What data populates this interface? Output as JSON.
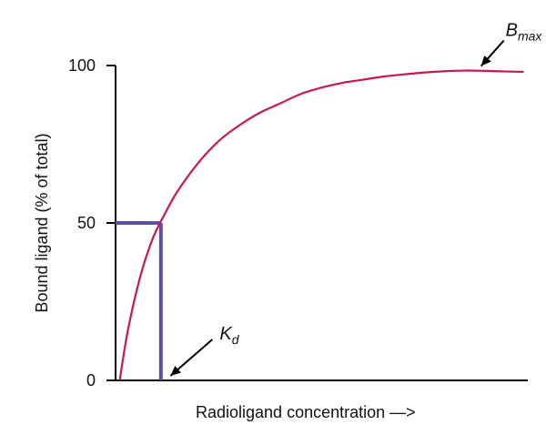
{
  "chart_data": {
    "type": "line",
    "title": "",
    "xlabel": "Radioligand concentration —>",
    "ylabel": "Bound ligand (% of total)",
    "xlim": [
      0,
      10
    ],
    "ylim": [
      0,
      100
    ],
    "yticks": [
      {
        "value": 0,
        "label": "0"
      },
      {
        "value": 50,
        "label": "50"
      },
      {
        "value": 100,
        "label": "100"
      }
    ],
    "grid": false,
    "legend": "none",
    "series": [
      {
        "color": "#c8194e",
        "x": [
          0.1,
          0.3,
          0.6,
          0.9,
          1.2,
          1.5,
          2.0,
          2.5,
          3.0,
          3.5,
          4.0,
          4.5,
          5.0,
          5.5,
          6.0,
          6.5,
          7.0,
          7.5,
          8.0,
          8.5,
          9.0,
          9.5,
          9.9
        ],
        "y": [
          0,
          16,
          33,
          45,
          53,
          60,
          69,
          76,
          81,
          85,
          88,
          91,
          93,
          94.5,
          95.5,
          96.5,
          97.2,
          97.8,
          98.2,
          98.4,
          98.3,
          98.1,
          98.0
        ]
      }
    ],
    "reference_lines": {
      "color": "#5a50a8",
      "kd_x": 1.1,
      "half_y": 50
    },
    "annotations": [
      {
        "id": "bmax",
        "text": "B",
        "subscript": "max",
        "x": 8.8,
        "y": 98.4
      },
      {
        "id": "kd",
        "text": "K",
        "subscript": "d",
        "x": 1.2,
        "y": 0
      }
    ]
  }
}
